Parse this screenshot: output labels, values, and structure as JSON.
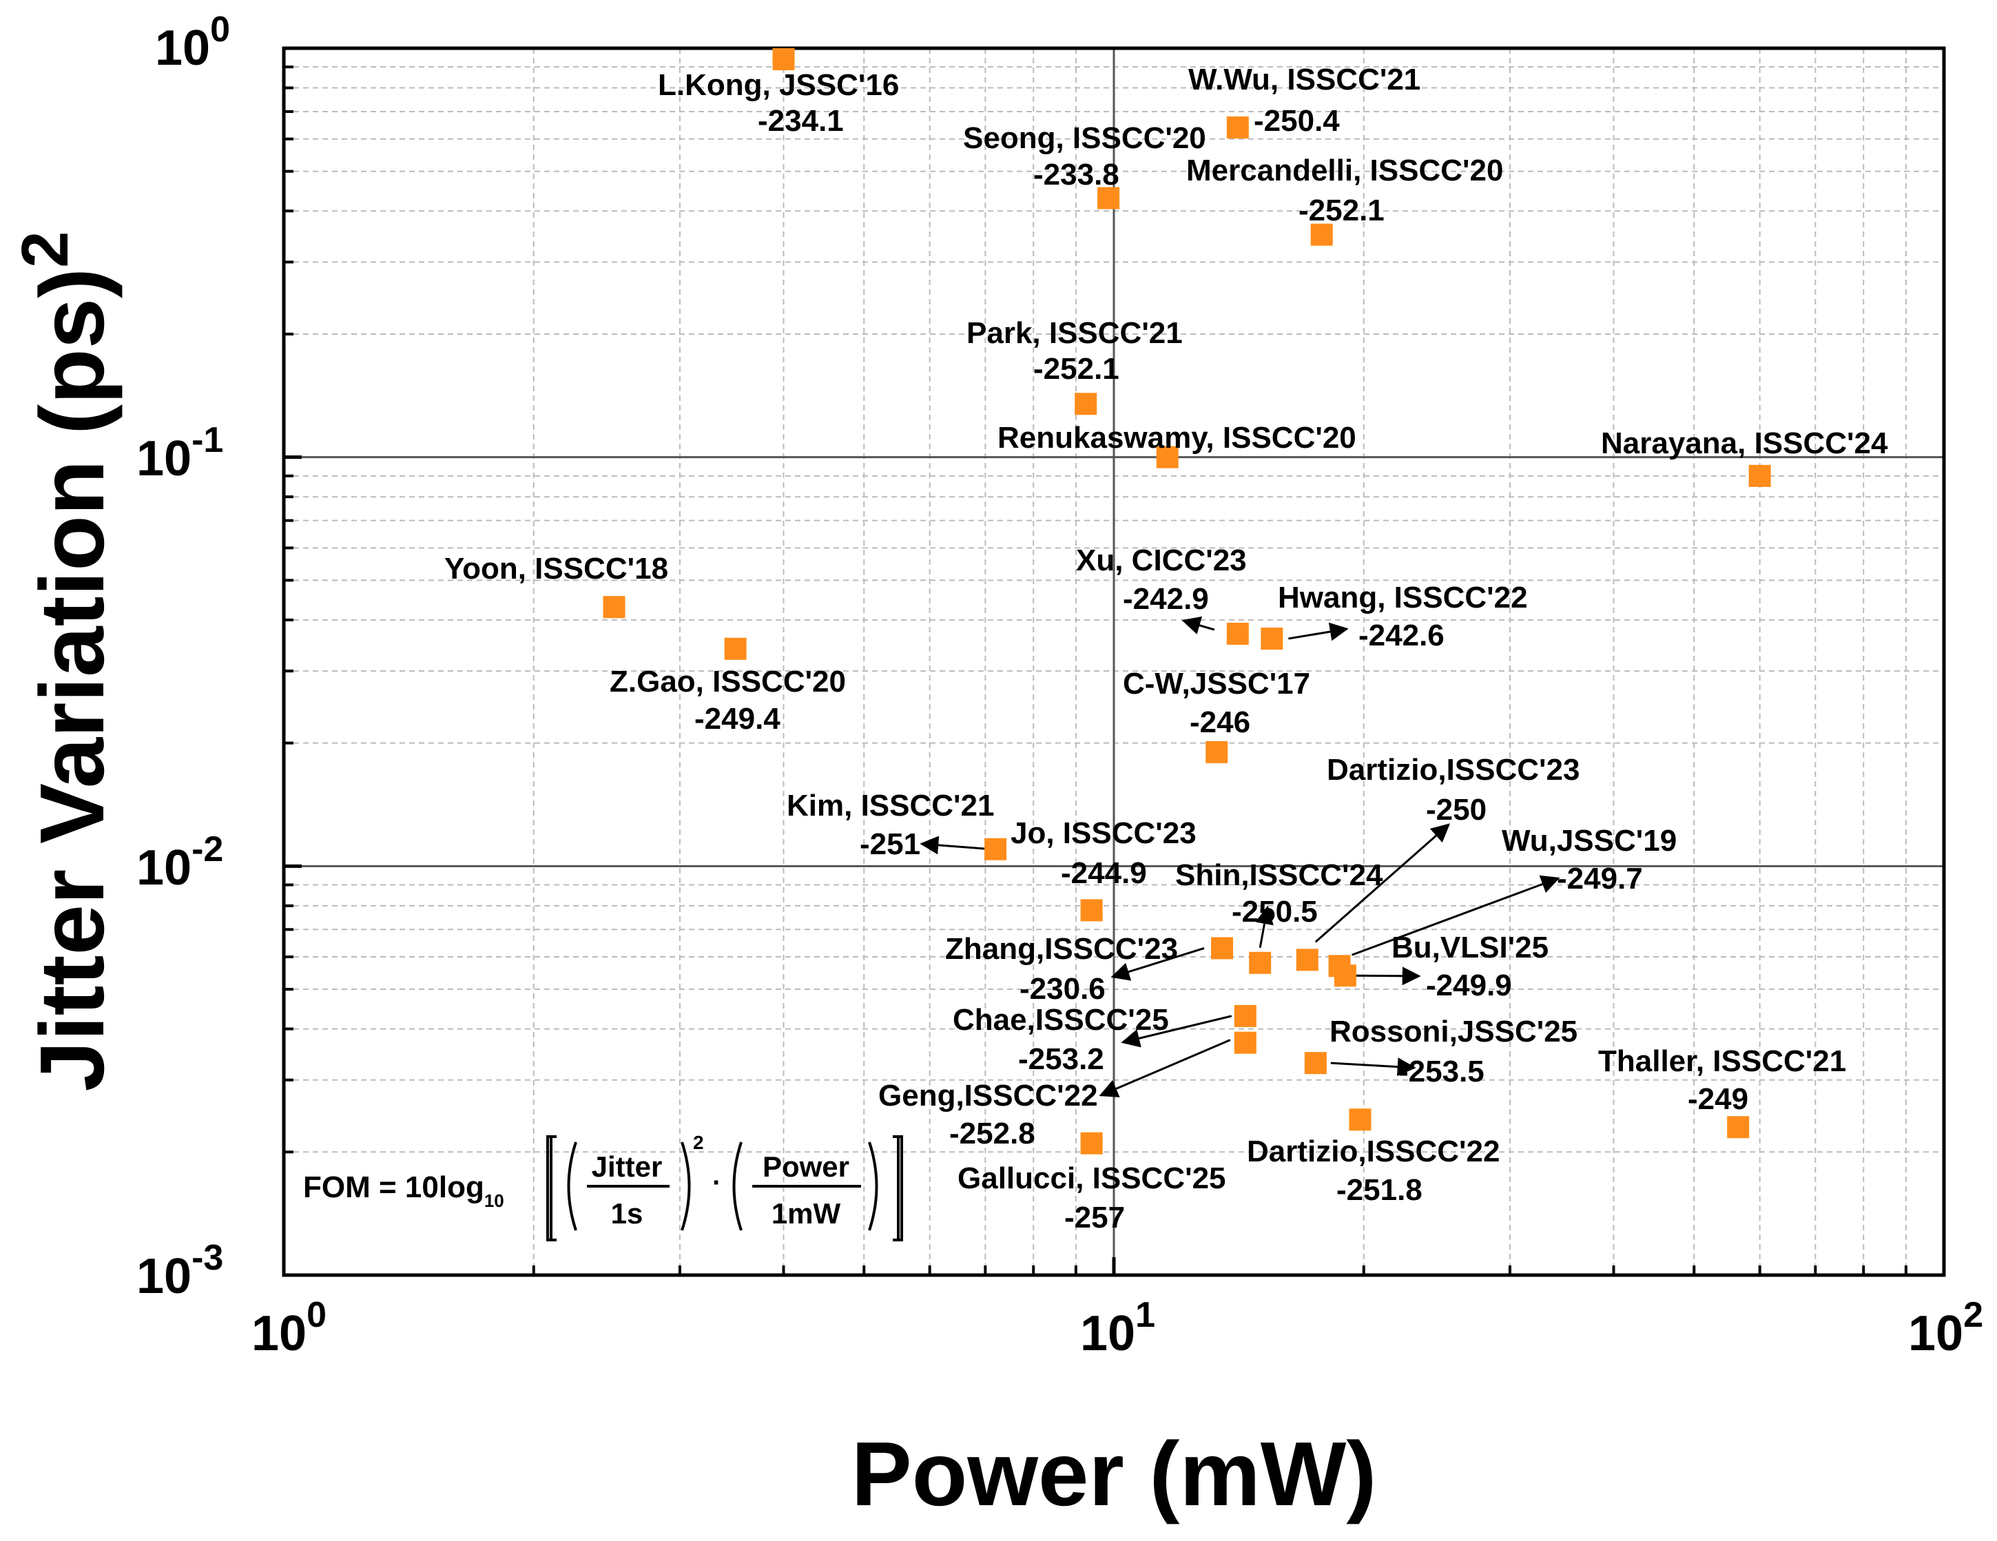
{
  "colors": {
    "marker": "#ff8c1a",
    "text": "#000000",
    "grid": "#bbbbbb"
  },
  "chart_data": {
    "type": "scatter",
    "title": "",
    "xlabel": "Power (mW)",
    "ylabel": "Jitter Variation (ps)",
    "ylabel_sup": "2",
    "xscale": "log",
    "yscale": "log",
    "xlim": [
      1,
      100
    ],
    "ylim": [
      0.001,
      1
    ],
    "x_ticks": [
      {
        "base": "10",
        "exp": "0"
      },
      {
        "base": "10",
        "exp": "1"
      },
      {
        "base": "10",
        "exp": "2"
      }
    ],
    "y_ticks": [
      {
        "base": "10",
        "exp": "0"
      },
      {
        "base": "10",
        "exp": "-1"
      },
      {
        "base": "10",
        "exp": "-2"
      },
      {
        "base": "10",
        "exp": "-3"
      }
    ],
    "grid": true,
    "fom_formula": {
      "lhs": "FOM = 10log",
      "sub": "10",
      "jitter": "Jitter",
      "one_s": "1s",
      "power": "Power",
      "one_mw": "1mW",
      "sq": "2"
    },
    "points": [
      {
        "name": "L.Kong, JSSC'16",
        "fom": "-234.1",
        "x": 4.0,
        "y": 0.94
      },
      {
        "name": "W.Wu, ISSCC'21",
        "fom": "-250.4",
        "x": 14.1,
        "y": 0.64
      },
      {
        "name": "Seong, ISSCC'20",
        "fom": "-233.8",
        "x": 9.85,
        "y": 0.43
      },
      {
        "name": "Mercandelli, ISSCC'20",
        "fom": "-252.1",
        "x": 17.8,
        "y": 0.35
      },
      {
        "name": "Park, ISSCC'21",
        "fom": "-252.1",
        "x": 9.25,
        "y": 0.135
      },
      {
        "name": "Renukaswamy, ISSCC'20",
        "fom": "",
        "x": 11.6,
        "y": 0.1
      },
      {
        "name": "Narayana, ISSCC'24",
        "fom": "",
        "x": 60.0,
        "y": 0.09
      },
      {
        "name": "Yoon, ISSCC'18",
        "fom": "",
        "x": 2.5,
        "y": 0.043
      },
      {
        "name": "Z.Gao, ISSCC'20",
        "fom": "-249.4",
        "x": 3.5,
        "y": 0.034
      },
      {
        "name": "Xu, CICC'23",
        "fom": "-242.9",
        "x": 14.1,
        "y": 0.037
      },
      {
        "name": "Hwang, ISSCC'22",
        "fom": "-242.6",
        "x": 15.5,
        "y": 0.036
      },
      {
        "name": "C-W,JSSC'17",
        "fom": "-246",
        "x": 13.3,
        "y": 0.019
      },
      {
        "name": "Kim, ISSCC'21",
        "fom": "-251",
        "x": 7.2,
        "y": 0.011
      },
      {
        "name": "Jo, ISSCC'23",
        "fom": "-244.9",
        "x": 9.4,
        "y": 0.0078
      },
      {
        "name": "Zhang,ISSCC'23",
        "fom": "-230.6",
        "x": 13.5,
        "y": 0.0063
      },
      {
        "name": "Shin,ISSCC'24",
        "fom": "-250.5",
        "x": 15.0,
        "y": 0.0058
      },
      {
        "name": "Dartizio,ISSCC'23",
        "fom": "-250",
        "x": 17.1,
        "y": 0.0059
      },
      {
        "name": "Wu,JSSC'19",
        "fom": "-249.7",
        "x": 18.7,
        "y": 0.0057
      },
      {
        "name": "Bu,VLSI'25",
        "fom": "-249.9",
        "x": 19.0,
        "y": 0.0054
      },
      {
        "name": "Chae,ISSCC'25",
        "fom": "-253.2",
        "x": 14.4,
        "y": 0.0043
      },
      {
        "name": "Geng,ISSCC'22",
        "fom": "-252.8",
        "x": 14.4,
        "y": 0.0037
      },
      {
        "name": "Rossoni,JSSC'25",
        "fom": "-253.5",
        "x": 17.5,
        "y": 0.0033
      },
      {
        "name": "Dartizio,ISSCC'22",
        "fom": "-251.8",
        "x": 19.8,
        "y": 0.0024
      },
      {
        "name": "Gallucci, ISSCC'25",
        "fom": "-257",
        "x": 9.4,
        "y": 0.0021
      },
      {
        "name": "Thaller, ISSCC'21",
        "fom": "-249",
        "x": 56.5,
        "y": 0.0023
      }
    ]
  }
}
